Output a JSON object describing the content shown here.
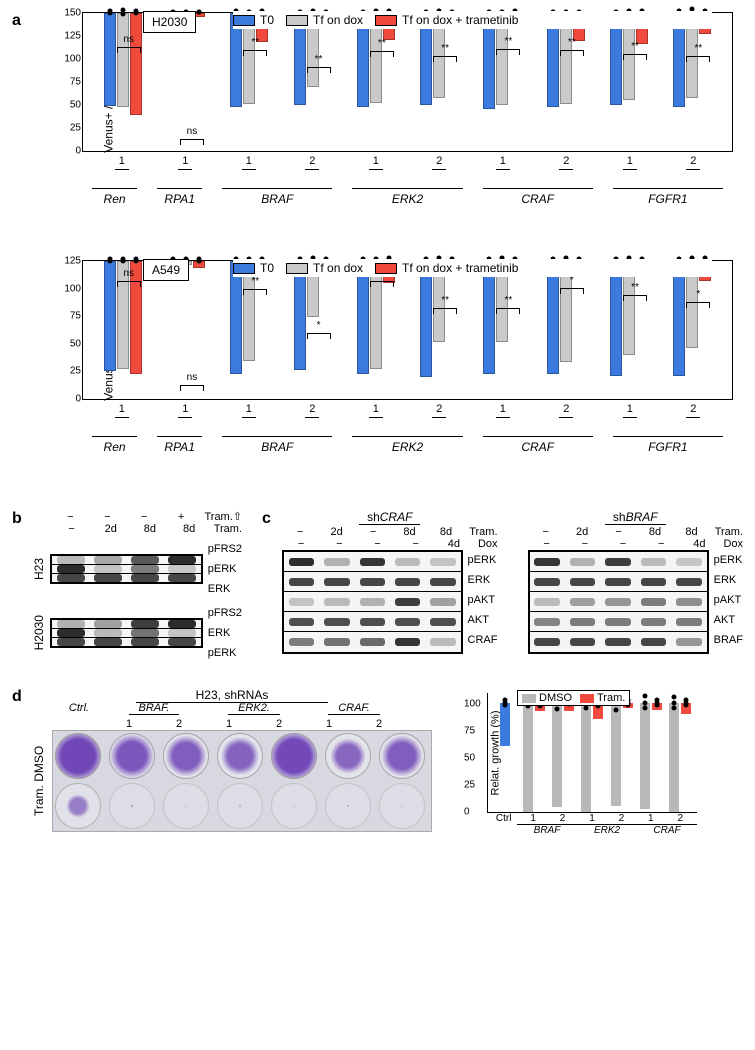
{
  "colors": {
    "t0": "#3b7be0",
    "dox": "#c9c9c9",
    "tram": "#f04a3e",
    "dmso": "#b8b8b8"
  },
  "panel_a": {
    "legend": {
      "t0": "T0",
      "dox": "Tf on dox",
      "tram": "Tf on dox + trametinib"
    },
    "y_label": "Venus+ / dsRed+ cells (%)",
    "charts": [
      {
        "cell_line": "H2030",
        "ymax": 150,
        "ytick_step": 25,
        "groups": [
          {
            "gene": "Ren",
            "id": "1",
            "sig": "ns",
            "t0": [
              98,
              101
            ],
            "dox": [
              98,
              103
            ],
            "tram": [
              110,
              108
            ]
          },
          {
            "gene": "RPA1",
            "id": "1",
            "sig": "ns",
            "t0": [
              2,
              3
            ],
            "dox": [
              2,
              3
            ],
            "tram": [
              5,
              4
            ]
          },
          {
            "gene": "BRAF",
            "id": "1",
            "sig": "**",
            "t0": [
              100,
              102
            ],
            "dox": [
              98,
              97
            ],
            "tram": [
              30,
              32
            ]
          },
          {
            "gene": "BRAF",
            "id": "2",
            "sig": "**",
            "t0": [
              98,
              99
            ],
            "dox": [
              78,
              80
            ],
            "tram": [
              6,
              7
            ]
          },
          {
            "gene": "ERK2",
            "id": "1",
            "sig": "**",
            "t0": [
              100,
              101
            ],
            "dox": [
              95,
              97
            ],
            "tram": [
              28,
              30
            ]
          },
          {
            "gene": "ERK2",
            "id": "2",
            "sig": "**",
            "t0": [
              98,
              99
            ],
            "dox": [
              90,
              92
            ],
            "tram": [
              6,
              7
            ]
          },
          {
            "gene": "CRAF",
            "id": "1",
            "sig": "**",
            "t0": [
              102,
              103
            ],
            "dox": [
              98,
              99
            ],
            "tram": [
              15,
              17
            ]
          },
          {
            "gene": "CRAF",
            "id": "2",
            "sig": "**",
            "t0": [
              100,
              101
            ],
            "dox": [
              97,
              98
            ],
            "tram": [
              30,
              31
            ]
          },
          {
            "gene": "FGFR1",
            "id": "1",
            "sig": "**",
            "t0": [
              98,
              99
            ],
            "dox": [
              92,
              94
            ],
            "tram": [
              32,
              34
            ]
          },
          {
            "gene": "FGFR1",
            "id": "2",
            "sig": "**",
            "t0": [
              100,
              102
            ],
            "dox": [
              88,
              94
            ],
            "tram": [
              22,
              24
            ]
          }
        ]
      },
      {
        "cell_line": "A549",
        "ymax": 125,
        "ytick_step": 25,
        "groups": [
          {
            "gene": "Ren",
            "id": "1",
            "sig": "ns",
            "t0": [
              97,
              99
            ],
            "dox": [
              95,
              97
            ],
            "tram": [
              100,
              102
            ]
          },
          {
            "gene": "RPA1",
            "id": "1",
            "sig": "ns",
            "t0": [
              2,
              3
            ],
            "dox": [
              3,
              4
            ],
            "tram": [
              6,
              7
            ]
          },
          {
            "gene": "BRAF",
            "id": "1",
            "sig": "**",
            "t0": [
              100,
              102
            ],
            "dox": [
              88,
              90
            ],
            "tram": [
              4,
              5
            ]
          },
          {
            "gene": "BRAF",
            "id": "2",
            "sig": "*",
            "t0": [
              96,
              98
            ],
            "dox": [
              48,
              52
            ],
            "tram": [
              8,
              9
            ]
          },
          {
            "gene": "ERK2",
            "id": "1",
            "sig": "**",
            "t0": [
              100,
              102
            ],
            "dox": [
              95,
              97
            ],
            "tram": [
              18,
              22
            ]
          },
          {
            "gene": "ERK2",
            "id": "2",
            "sig": "**",
            "t0": [
              103,
              105
            ],
            "dox": [
              70,
              74
            ],
            "tram": [
              6,
              8
            ]
          },
          {
            "gene": "CRAF",
            "id": "1",
            "sig": "**",
            "t0": [
              100,
              101
            ],
            "dox": [
              70,
              74
            ],
            "tram": [
              10,
              12
            ]
          },
          {
            "gene": "CRAF",
            "id": "2",
            "sig": "*",
            "t0": [
              100,
              102
            ],
            "dox": [
              88,
              92
            ],
            "tram": [
              8,
              10
            ]
          },
          {
            "gene": "FGFR1",
            "id": "1",
            "sig": "**",
            "t0": [
              102,
              103
            ],
            "dox": [
              82,
              86
            ],
            "tram": [
              12,
              14
            ]
          },
          {
            "gene": "FGFR1",
            "id": "2",
            "sig": "*",
            "t0": [
              102,
              103
            ],
            "dox": [
              76,
              80
            ],
            "tram": [
              16,
              20
            ]
          }
        ]
      }
    ]
  },
  "panel_b": {
    "header_tram_up": [
      "−",
      "−",
      "−",
      "+"
    ],
    "header_tram": [
      "−",
      "2d",
      "8d",
      "8d"
    ],
    "tram_up_label": "Tram.⇧",
    "tram_label": "Tram.",
    "sets": [
      {
        "cell": "H23",
        "rows": [
          {
            "label": "pFRS2",
            "intens": [
              0.15,
              0.25,
              0.7,
              0.95
            ]
          },
          {
            "label": "pERK",
            "intens": [
              0.95,
              0.1,
              0.5,
              0.08
            ]
          },
          {
            "label": "ERK",
            "intens": [
              0.8,
              0.8,
              0.8,
              0.8
            ]
          }
        ]
      },
      {
        "cell": "H2030",
        "rows": [
          {
            "label": "pFRS2",
            "intens": [
              0.2,
              0.3,
              0.85,
              0.95
            ]
          },
          {
            "label": "ERK",
            "intens": [
              0.95,
              0.15,
              0.55,
              0.1
            ]
          },
          {
            "label": "pERK",
            "intens": [
              0.8,
              0.8,
              0.8,
              0.8
            ]
          }
        ]
      }
    ]
  },
  "panel_c": {
    "header_tram": [
      "−",
      "2d",
      "−",
      "8d",
      "8d"
    ],
    "header_dox": [
      "−",
      "−",
      "−",
      "−",
      "4d"
    ],
    "tram_label": "Tram.",
    "dox_label": "Dox",
    "sets": [
      {
        "title": "shCRAF",
        "rows": [
          {
            "label": "pERK",
            "intens": [
              0.95,
              0.2,
              0.9,
              0.15,
              0.1
            ]
          },
          {
            "label": "ERK",
            "intens": [
              0.8,
              0.8,
              0.8,
              0.8,
              0.8
            ]
          },
          {
            "label": "pAKT",
            "intens": [
              0.1,
              0.15,
              0.2,
              0.85,
              0.3
            ]
          },
          {
            "label": "AKT",
            "intens": [
              0.75,
              0.75,
              0.75,
              0.75,
              0.75
            ]
          },
          {
            "label": "CRAF",
            "intens": [
              0.5,
              0.55,
              0.6,
              0.9,
              0.15
            ]
          }
        ]
      },
      {
        "title": "shBRAF",
        "rows": [
          {
            "label": "pERK",
            "intens": [
              0.9,
              0.2,
              0.85,
              0.15,
              0.08
            ]
          },
          {
            "label": "ERK",
            "intens": [
              0.8,
              0.8,
              0.8,
              0.8,
              0.8
            ]
          },
          {
            "label": "pAKT",
            "intens": [
              0.15,
              0.3,
              0.35,
              0.5,
              0.4
            ]
          },
          {
            "label": "AKT",
            "intens": [
              0.45,
              0.5,
              0.5,
              0.5,
              0.5
            ]
          },
          {
            "label": "BRAF",
            "intens": [
              0.8,
              0.8,
              0.8,
              0.8,
              0.35
            ]
          }
        ]
      }
    ]
  },
  "panel_d": {
    "title": "H23, shRNAs",
    "rows": [
      "DMSO",
      "Tram."
    ],
    "row_side": "Tram. DMSO",
    "cols": [
      {
        "gene": "Ctrl.",
        "id": "",
        "dmso": 0.9,
        "tram": 0.4
      },
      {
        "gene": "BRAF.",
        "id": "1",
        "dmso": 0.75,
        "tram": 0.05
      },
      {
        "gene": "BRAF.",
        "id": "2",
        "dmso": 0.7,
        "tram": 0.03
      },
      {
        "gene": "ERK2.",
        "id": "1",
        "dmso": 0.65,
        "tram": 0.04
      },
      {
        "gene": "ERK2.",
        "id": "2",
        "dmso": 0.88,
        "tram": 0.03
      },
      {
        "gene": "CRAF.",
        "id": "1",
        "dmso": 0.6,
        "tram": 0.04
      },
      {
        "gene": "CRAF.",
        "id": "2",
        "dmso": 0.7,
        "tram": 0.03
      }
    ],
    "chart": {
      "y_label": "Relat. growth (%)",
      "ymax": 110,
      "yticks": [
        0,
        25,
        50,
        75,
        100
      ],
      "legend": {
        "dmso": "DMSO",
        "tram": "Tram."
      },
      "groups": [
        {
          "label": "Ctrl",
          "gene": "",
          "dmso": null,
          "tram": [
            38,
            40,
            42
          ]
        },
        {
          "label": "1",
          "gene": "BRAF",
          "dmso": [
            97,
            101,
            103
          ],
          "tram": [
            4,
            8,
            10
          ]
        },
        {
          "label": "2",
          "gene": "BRAF",
          "dmso": [
            90,
            96,
            102
          ],
          "tram": [
            6,
            7,
            10
          ]
        },
        {
          "label": "1",
          "gene": "ERK2",
          "dmso": [
            95,
            100,
            105
          ],
          "tram": [
            12,
            15,
            18
          ]
        },
        {
          "label": "2",
          "gene": "ERK2",
          "dmso": [
            88,
            95,
            102
          ],
          "tram": [
            3,
            5,
            8
          ]
        },
        {
          "label": "1",
          "gene": "CRAF",
          "dmso": [
            92,
            97,
            103
          ],
          "tram": [
            5,
            7,
            9
          ]
        },
        {
          "label": "2",
          "gene": "CRAF",
          "dmso": [
            95,
            100,
            105
          ],
          "tram": [
            8,
            10,
            13
          ]
        }
      ]
    }
  }
}
